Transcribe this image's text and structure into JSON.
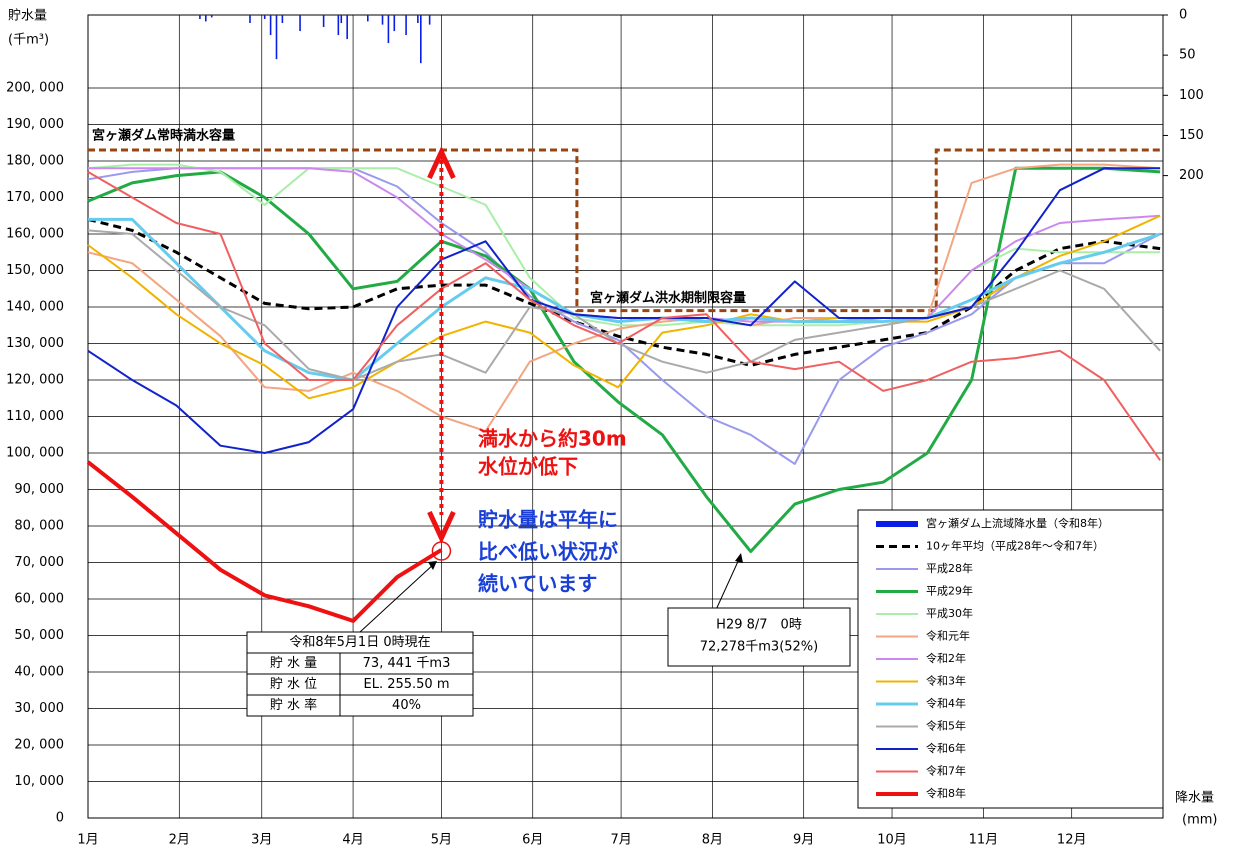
{
  "chart_data": {
    "type": "line",
    "y_label": [
      "貯水量",
      "(千m³)"
    ],
    "y2_label": [
      "降水量",
      "(mm)"
    ],
    "xlim": [
      0,
      365
    ],
    "xticks": [
      {
        "value": 0,
        "label": "1月"
      },
      {
        "value": 31,
        "label": "2月"
      },
      {
        "value": 59,
        "label": "3月"
      },
      {
        "value": 90,
        "label": "4月"
      },
      {
        "value": 120,
        "label": "5月"
      },
      {
        "value": 151,
        "label": "6月"
      },
      {
        "value": 181,
        "label": "7月"
      },
      {
        "value": 212,
        "label": "8月"
      },
      {
        "value": 243,
        "label": "9月"
      },
      {
        "value": 273,
        "label": "10月"
      },
      {
        "value": 304,
        "label": "11月"
      },
      {
        "value": 334,
        "label": "12月"
      }
    ],
    "ylim": [
      0,
      220000
    ],
    "yticks": [
      0,
      {
        "value": 10000,
        "label": "10, 000"
      },
      {
        "value": 20000,
        "label": "20, 000"
      },
      {
        "value": 30000,
        "label": "30, 000"
      },
      {
        "value": 40000,
        "label": "40, 000"
      },
      {
        "value": 50000,
        "label": "50, 000"
      },
      {
        "value": 60000,
        "label": "60, 000"
      },
      {
        "value": 70000,
        "label": "70, 000"
      },
      {
        "value": 80000,
        "label": "80, 000"
      },
      {
        "value": 90000,
        "label": "90, 000"
      },
      {
        "value": 100000,
        "label": "100, 000"
      },
      {
        "value": 110000,
        "label": "110, 000"
      },
      {
        "value": 120000,
        "label": "120, 000"
      },
      {
        "value": 130000,
        "label": "130, 000"
      },
      {
        "value": 140000,
        "label": "140, 000"
      },
      {
        "value": 150000,
        "label": "150, 000"
      },
      {
        "value": 160000,
        "label": "160, 000"
      },
      {
        "value": 170000,
        "label": "170, 000"
      },
      {
        "value": 180000,
        "label": "180, 000"
      },
      {
        "value": 190000,
        "label": "190, 000"
      },
      {
        "value": 200000,
        "label": "200, 000"
      }
    ],
    "y2lim": [
      0,
      1000
    ],
    "y2_inverted": true,
    "y2ticks": [
      0,
      50,
      100,
      150,
      200
    ],
    "grid": true,
    "legend": "lower-right",
    "x": [
      0,
      15,
      30,
      45,
      60,
      75,
      90,
      105,
      120,
      135,
      150,
      165,
      180,
      195,
      210,
      225,
      240,
      255,
      270,
      285,
      300,
      315,
      330,
      345,
      364
    ],
    "series": [
      {
        "name": "宮ヶ瀬ダム上流域降水量（令和8年）",
        "type": "bar",
        "axis": "y2",
        "color": "#0a1ee6",
        "line_width": 6,
        "x": [
          38,
          40,
          42,
          55,
          60,
          62,
          64,
          66,
          72,
          80,
          85,
          86,
          88,
          95,
          100,
          102,
          104,
          108,
          112,
          113,
          116
        ],
        "values": [
          5,
          8,
          3,
          10,
          5,
          25,
          55,
          10,
          20,
          15,
          25,
          10,
          30,
          8,
          12,
          35,
          20,
          25,
          10,
          60,
          12
        ]
      },
      {
        "name": "10ヶ年平均（平成28年～令和7年）",
        "color": "#000000",
        "line_width": 3,
        "dash": true,
        "values": [
          164000,
          161000,
          155000,
          148000,
          141000,
          139500,
          140000,
          145000,
          146000,
          146000,
          141000,
          136000,
          132000,
          129000,
          127000,
          124000,
          127000,
          129000,
          131000,
          133000,
          140000,
          150000,
          156000,
          158000,
          156000
        ]
      },
      {
        "name": "平成28年",
        "color": "#9999ee",
        "line_width": 2,
        "values": [
          175000,
          177000,
          178000,
          178000,
          178000,
          178000,
          178000,
          173000,
          163000,
          155000,
          143000,
          136000,
          131000,
          120000,
          110000,
          105000,
          97000,
          120000,
          129000,
          133000,
          138000,
          148000,
          152000,
          152000,
          160000
        ]
      },
      {
        "name": "平成29年",
        "color": "#22aa44",
        "line_width": 3,
        "values": [
          169000,
          174000,
          176000,
          177000,
          170000,
          160000,
          145000,
          147000,
          158000,
          154000,
          145000,
          125000,
          114000,
          105000,
          88000,
          73000,
          86000,
          90000,
          92000,
          100000,
          120000,
          178000,
          178000,
          178000,
          177000
        ]
      },
      {
        "name": "平成30年",
        "color": "#aaeeaa",
        "line_width": 2,
        "values": [
          178000,
          179000,
          179000,
          177000,
          168000,
          178000,
          178000,
          178000,
          173000,
          168000,
          148000,
          137000,
          135000,
          135000,
          136000,
          135000,
          135000,
          135000,
          136000,
          137000,
          150000,
          156000,
          155000,
          155000,
          155000
        ]
      },
      {
        "name": "令和元年",
        "color": "#f4a582",
        "line_width": 2,
        "values": [
          155000,
          152000,
          142000,
          132000,
          118000,
          117000,
          122000,
          117000,
          110000,
          106000,
          125000,
          130000,
          134000,
          136000,
          137000,
          135000,
          137000,
          137000,
          137000,
          137000,
          174000,
          178000,
          179000,
          179000,
          178000
        ]
      },
      {
        "name": "令和2年",
        "color": "#cc88ee",
        "line_width": 2,
        "values": [
          178000,
          178000,
          178000,
          178000,
          178000,
          178000,
          177000,
          170000,
          160000,
          153000,
          145000,
          138000,
          137000,
          137000,
          137000,
          136000,
          136000,
          136000,
          137000,
          137000,
          150000,
          158000,
          163000,
          164000,
          165000
        ]
      },
      {
        "name": "令和3年",
        "color": "#f0b400",
        "line_width": 2,
        "values": [
          157000,
          148000,
          138000,
          130000,
          124000,
          115000,
          118000,
          125000,
          132000,
          136000,
          133000,
          124000,
          118000,
          133000,
          135000,
          138000,
          136000,
          137000,
          136000,
          136000,
          140000,
          148000,
          154000,
          158000,
          165000
        ]
      },
      {
        "name": "令和4年",
        "color": "#66ccee",
        "line_width": 3,
        "values": [
          164000,
          164000,
          152000,
          140000,
          128000,
          122000,
          120000,
          130000,
          140000,
          148000,
          145000,
          138000,
          136000,
          137000,
          136000,
          137000,
          136000,
          136000,
          136000,
          137000,
          142000,
          148000,
          152000,
          155000,
          160000
        ]
      },
      {
        "name": "令和5年",
        "color": "#aaaaaa",
        "line_width": 2,
        "values": [
          161000,
          160000,
          150000,
          140000,
          135000,
          123000,
          120000,
          125000,
          127000,
          122000,
          140000,
          138000,
          130000,
          125000,
          122000,
          125000,
          131000,
          133000,
          135000,
          137000,
          140000,
          145000,
          150000,
          145000,
          128000
        ]
      },
      {
        "name": "令和6年",
        "color": "#1122cc",
        "line_width": 2,
        "values": [
          128000,
          120000,
          113000,
          102000,
          100000,
          103000,
          112000,
          140000,
          153000,
          158000,
          142000,
          138000,
          137000,
          137000,
          137000,
          135000,
          147000,
          137000,
          137000,
          137000,
          140000,
          155000,
          172000,
          178000,
          178000
        ]
      },
      {
        "name": "令和7年",
        "color": "#f06060",
        "line_width": 2,
        "values": [
          177000,
          170000,
          163000,
          160000,
          130000,
          120000,
          120000,
          135000,
          145000,
          152000,
          142000,
          135000,
          130000,
          137000,
          138000,
          125000,
          123000,
          125000,
          117000,
          120000,
          125000,
          126000,
          128000,
          120000,
          98000
        ]
      },
      {
        "name": "令和8年",
        "color": "#ee1111",
        "line_width": 4,
        "values": [
          97500,
          88000,
          78000,
          68000,
          61000,
          58000,
          54000,
          66000,
          73441,
          null,
          null,
          null,
          null,
          null,
          null,
          null,
          null,
          null,
          null,
          null,
          null,
          null,
          null,
          null,
          null
        ]
      }
    ],
    "full_capacity": {
      "label": "宮ヶ瀬ダム常時満水容量",
      "value": 183000,
      "color": "#994411"
    },
    "flood_limit": {
      "label": "宮ヶ瀬ダム洪水期制限容量",
      "value": 139000,
      "from": 166,
      "to": 288
    },
    "annotations": {
      "drawdown": [
        "満水から約30m",
        "水位が低下"
      ],
      "status": [
        "貯水量は平年に",
        "比べ低い状況が",
        "続いています"
      ],
      "current": {
        "title": "令和8年5月1日 0時現在",
        "rows": [
          [
            "貯 水 量",
            "73, 441 千m3"
          ],
          [
            "貯 水 位",
            "EL. 255.50 m"
          ],
          [
            "貯 水 率",
            "40%"
          ]
        ]
      },
      "h29_min": [
        "H29 8/7　0時",
        "72,278千m3(52%)"
      ]
    }
  }
}
